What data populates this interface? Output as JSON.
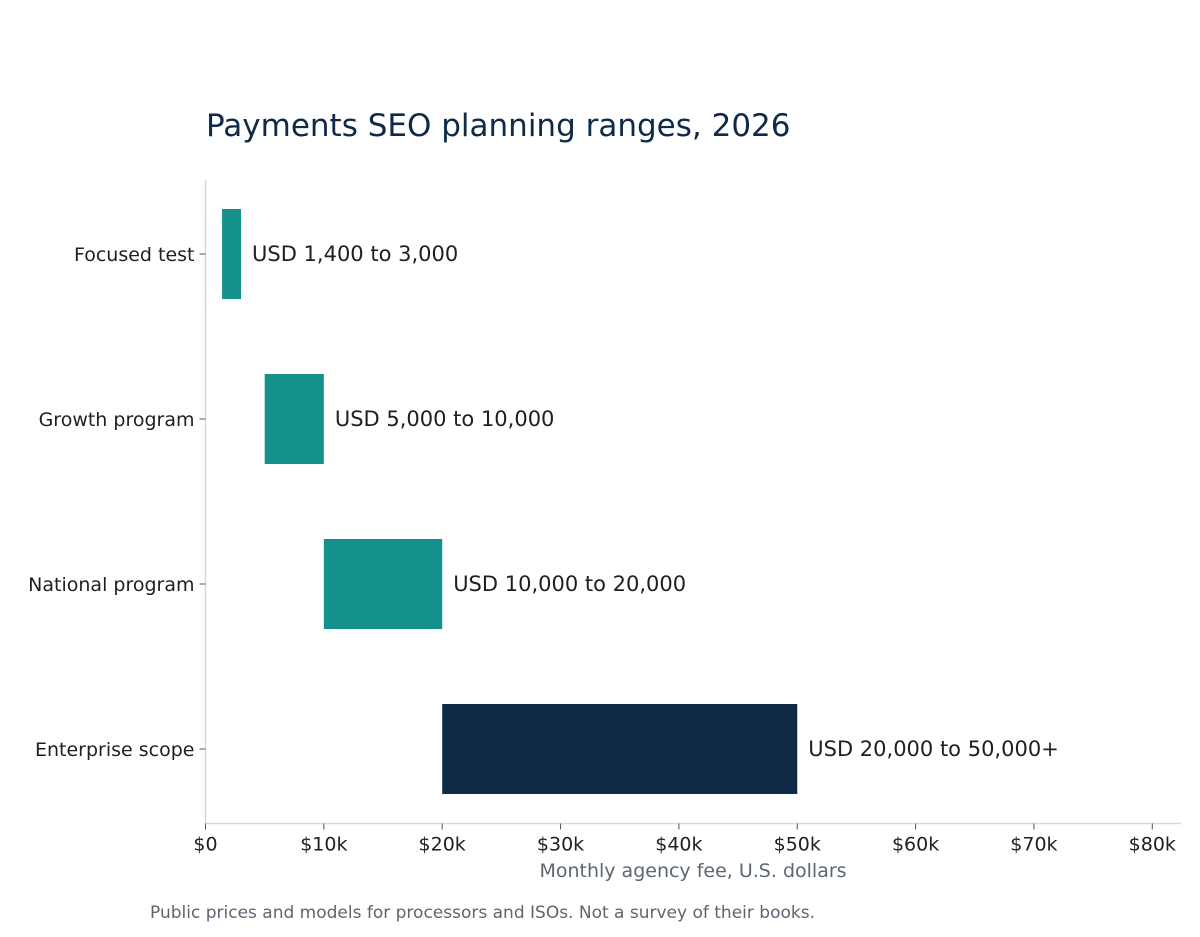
{
  "colors": {
    "title": "#0f2a47",
    "label": "#1f1f1f",
    "muted": "#5c6670",
    "axis": "#d9d9d9",
    "teal": "#14918c",
    "navy": "#0f2a47"
  },
  "chart_data": {
    "type": "bar",
    "orientation": "horizontal-range",
    "title": "Payments SEO planning ranges, 2026",
    "xlabel": "Monthly agency fee, U.S. dollars",
    "footnote": "Public prices and models for processors and ISOs. Not a survey of their books.",
    "xlim": [
      0,
      82000
    ],
    "xticks": [
      {
        "value": 0,
        "label": "$0"
      },
      {
        "value": 10000,
        "label": "$10k"
      },
      {
        "value": 20000,
        "label": "$20k"
      },
      {
        "value": 30000,
        "label": "$30k"
      },
      {
        "value": 40000,
        "label": "$40k"
      },
      {
        "value": 50000,
        "label": "$50k"
      },
      {
        "value": 60000,
        "label": "$60k"
      },
      {
        "value": 70000,
        "label": "$70k"
      },
      {
        "value": 80000,
        "label": "$80k"
      }
    ],
    "grid": false,
    "categories": [
      "Focused test",
      "Growth program",
      "National program",
      "Enterprise scope"
    ],
    "ranges": [
      {
        "category": "Focused test",
        "start": 1400,
        "end": 3000,
        "label": "USD 1,400 to 3,000",
        "color": "#14918c"
      },
      {
        "category": "Growth program",
        "start": 5000,
        "end": 10000,
        "label": "USD 5,000 to 10,000",
        "color": "#14918c"
      },
      {
        "category": "National program",
        "start": 10000,
        "end": 20000,
        "label": "USD 10,000 to 20,000",
        "color": "#14918c"
      },
      {
        "category": "Enterprise scope",
        "start": 20000,
        "end": 50000,
        "label": "USD 20,000 to 50,000+",
        "color": "#0f2a47"
      }
    ]
  }
}
